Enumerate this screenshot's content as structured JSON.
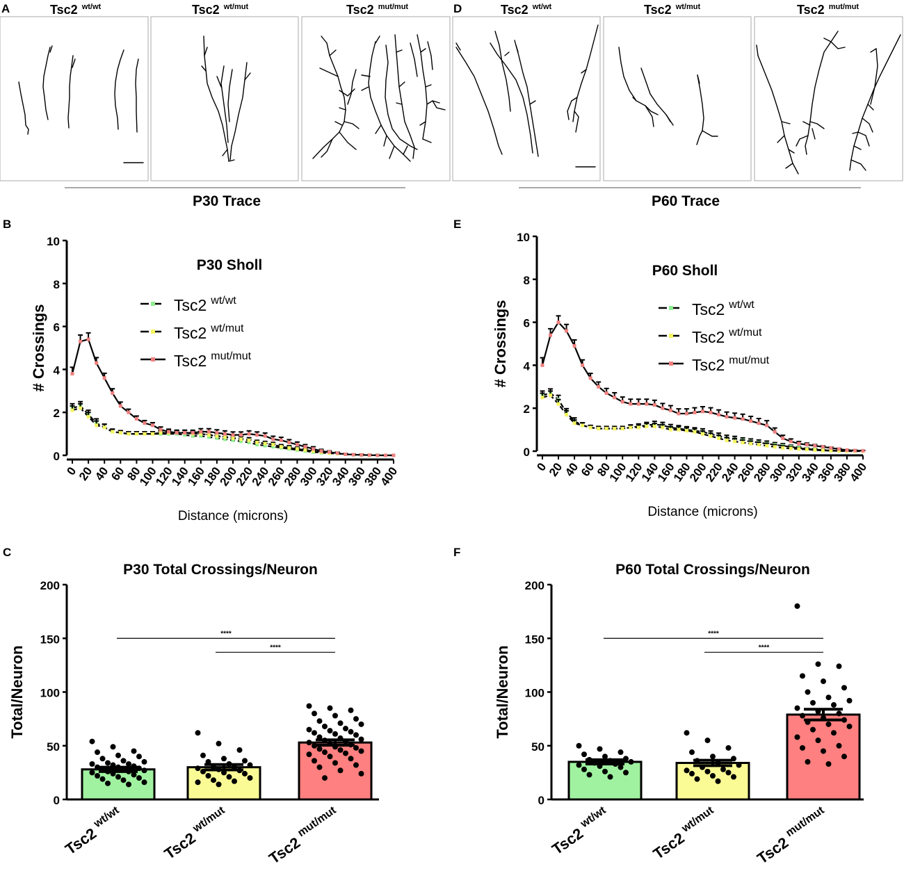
{
  "trace_row": {
    "left": {
      "panel_label": "A",
      "trace_label": "P30 Trace",
      "headers": [
        {
          "main": "Tsc2",
          "sup": "wt/wt"
        },
        {
          "main": "Tsc2",
          "sup": "wt/mut"
        },
        {
          "main": "Tsc2",
          "sup": "mut/mut"
        }
      ]
    },
    "right": {
      "panel_label": "D",
      "trace_label": "P60 Trace",
      "headers": [
        {
          "main": "Tsc2",
          "sup": "wt/wt"
        },
        {
          "main": "Tsc2",
          "sup": "wt/mut"
        },
        {
          "main": "Tsc2",
          "sup": "mut/mut"
        }
      ]
    }
  },
  "colors": {
    "wt_wt": "#90ee90",
    "wt_mut": "#f5f560",
    "mut_mut": "#f08080",
    "bar_wt_wt": "#a0f2a0",
    "bar_wt_mut": "#fbfb96",
    "bar_mut_mut": "#ff8080"
  },
  "chart_data": [
    {
      "panel": "B",
      "type": "line",
      "title": "P30 Sholl",
      "xlabel": "Distance (microns)",
      "ylabel": "# Crossings",
      "ylim": [
        0,
        10
      ],
      "yticks": [
        0,
        2,
        4,
        6,
        8,
        10
      ],
      "xlim": [
        0,
        400
      ],
      "xticks": [
        0,
        20,
        40,
        60,
        80,
        100,
        120,
        140,
        160,
        180,
        200,
        220,
        240,
        260,
        280,
        300,
        320,
        340,
        360,
        380,
        400
      ],
      "x": [
        0,
        10,
        20,
        30,
        40,
        50,
        60,
        70,
        80,
        90,
        100,
        110,
        120,
        130,
        140,
        150,
        160,
        170,
        180,
        190,
        200,
        210,
        220,
        230,
        240,
        250,
        260,
        270,
        280,
        290,
        300,
        310,
        320,
        330,
        340,
        350,
        360,
        370,
        380,
        390,
        400
      ],
      "legend": [
        {
          "main": "Tsc2",
          "sup": "wt/wt"
        },
        {
          "main": "Tsc2",
          "sup": "wt/mut"
        },
        {
          "main": "Tsc2",
          "sup": "mut/mut"
        }
      ],
      "series": [
        {
          "name": "Tsc2 wt/wt",
          "color_key": "wt_wt",
          "values": [
            2.2,
            2.3,
            1.9,
            1.5,
            1.3,
            1.1,
            1.05,
            1.0,
            1.0,
            1.0,
            1.0,
            1.0,
            1.0,
            1.0,
            0.95,
            0.9,
            0.9,
            0.85,
            0.8,
            0.75,
            0.7,
            0.65,
            0.6,
            0.5,
            0.45,
            0.4,
            0.35,
            0.3,
            0.25,
            0.2,
            0.15,
            0.12,
            0.1,
            0.08,
            0.05,
            0.03,
            0.02,
            0.01,
            0.01,
            0.0,
            0.0
          ],
          "err": [
            0.2,
            0.2,
            0.2,
            0.2,
            0.15,
            0.12,
            0.1,
            0.1,
            0.1,
            0.1,
            0.1,
            0.12,
            0.12,
            0.12,
            0.12,
            0.12,
            0.12,
            0.12,
            0.12,
            0.12,
            0.12,
            0.12,
            0.12,
            0.1,
            0.1,
            0.1,
            0.1,
            0.1,
            0.08,
            0.08,
            0.08,
            0.06,
            0.05,
            0.04,
            0.03,
            0.02,
            0.02,
            0.01,
            0.01,
            0.0,
            0.0
          ]
        },
        {
          "name": "Tsc2 wt/mut",
          "color_key": "wt_mut",
          "values": [
            2.1,
            2.2,
            1.8,
            1.4,
            1.3,
            1.1,
            1.05,
            1.0,
            1.0,
            1.0,
            1.0,
            1.05,
            1.05,
            1.05,
            1.05,
            1.0,
            1.0,
            0.95,
            0.9,
            0.85,
            0.8,
            0.75,
            0.7,
            0.6,
            0.55,
            0.5,
            0.4,
            0.35,
            0.3,
            0.25,
            0.2,
            0.15,
            0.1,
            0.08,
            0.05,
            0.03,
            0.02,
            0.01,
            0.0,
            0.0,
            0.0
          ],
          "err": [
            0.2,
            0.2,
            0.2,
            0.2,
            0.15,
            0.12,
            0.1,
            0.1,
            0.1,
            0.1,
            0.1,
            0.12,
            0.12,
            0.12,
            0.12,
            0.12,
            0.12,
            0.12,
            0.12,
            0.12,
            0.12,
            0.12,
            0.12,
            0.1,
            0.1,
            0.1,
            0.1,
            0.1,
            0.08,
            0.08,
            0.08,
            0.06,
            0.05,
            0.04,
            0.03,
            0.02,
            0.02,
            0.01,
            0.0,
            0.0,
            0.0
          ]
        },
        {
          "name": "Tsc2 mut/mut",
          "color_key": "mut_mut",
          "values": [
            3.8,
            5.3,
            5.4,
            4.3,
            3.6,
            2.9,
            2.3,
            2.0,
            1.7,
            1.5,
            1.4,
            1.2,
            1.1,
            1.05,
            1.05,
            1.05,
            1.1,
            1.1,
            1.05,
            1.0,
            0.95,
            0.95,
            1.0,
            0.95,
            0.9,
            0.75,
            0.7,
            0.6,
            0.5,
            0.4,
            0.3,
            0.2,
            0.15,
            0.1,
            0.05,
            0.03,
            0.02,
            0.01,
            0.0,
            0.0,
            0.0
          ],
          "err": [
            0.3,
            0.3,
            0.3,
            0.25,
            0.22,
            0.2,
            0.18,
            0.15,
            0.13,
            0.12,
            0.12,
            0.12,
            0.12,
            0.12,
            0.12,
            0.12,
            0.14,
            0.14,
            0.14,
            0.14,
            0.14,
            0.14,
            0.14,
            0.14,
            0.14,
            0.14,
            0.14,
            0.13,
            0.12,
            0.1,
            0.1,
            0.08,
            0.06,
            0.05,
            0.03,
            0.02,
            0.02,
            0.01,
            0.0,
            0.0,
            0.0
          ]
        }
      ]
    },
    {
      "panel": "E",
      "type": "line",
      "title": "P60 Sholl",
      "xlabel": "Distance (microns)",
      "ylabel": "# Crossings",
      "ylim": [
        0,
        10
      ],
      "yticks": [
        0,
        2,
        4,
        6,
        8,
        10
      ],
      "xlim": [
        0,
        400
      ],
      "xticks": [
        0,
        20,
        40,
        60,
        80,
        100,
        120,
        140,
        160,
        180,
        200,
        220,
        240,
        260,
        280,
        300,
        320,
        340,
        360,
        380,
        400
      ],
      "x": [
        0,
        10,
        20,
        30,
        40,
        50,
        60,
        70,
        80,
        90,
        100,
        110,
        120,
        130,
        140,
        150,
        160,
        170,
        180,
        190,
        200,
        210,
        220,
        230,
        240,
        250,
        260,
        270,
        280,
        290,
        300,
        310,
        320,
        330,
        340,
        350,
        360,
        370,
        380,
        390,
        400
      ],
      "legend": [
        {
          "main": "Tsc2",
          "sup": "wt/wt"
        },
        {
          "main": "Tsc2",
          "sup": "wt/mut"
        },
        {
          "main": "Tsc2",
          "sup": "mut/mut"
        }
      ],
      "series": [
        {
          "name": "Tsc2 wt/wt",
          "color_key": "wt_wt",
          "values": [
            2.6,
            2.7,
            2.4,
            1.8,
            1.4,
            1.2,
            1.1,
            1.05,
            1.05,
            1.05,
            1.05,
            1.1,
            1.15,
            1.2,
            1.25,
            1.2,
            1.1,
            1.05,
            1.0,
            0.95,
            0.9,
            0.8,
            0.7,
            0.6,
            0.55,
            0.5,
            0.45,
            0.4,
            0.35,
            0.3,
            0.25,
            0.2,
            0.15,
            0.1,
            0.08,
            0.05,
            0.03,
            0.02,
            0.01,
            0.0,
            0.0
          ],
          "err": [
            0.2,
            0.2,
            0.2,
            0.18,
            0.15,
            0.12,
            0.1,
            0.1,
            0.1,
            0.1,
            0.1,
            0.12,
            0.12,
            0.14,
            0.14,
            0.14,
            0.14,
            0.14,
            0.14,
            0.14,
            0.14,
            0.14,
            0.14,
            0.14,
            0.14,
            0.12,
            0.12,
            0.12,
            0.12,
            0.1,
            0.1,
            0.08,
            0.06,
            0.05,
            0.04,
            0.03,
            0.02,
            0.02,
            0.01,
            0.0,
            0.0
          ]
        },
        {
          "name": "Tsc2 wt/mut",
          "color_key": "wt_mut",
          "values": [
            2.5,
            2.6,
            2.2,
            1.7,
            1.3,
            1.2,
            1.1,
            1.05,
            1.05,
            1.05,
            1.05,
            1.1,
            1.1,
            1.15,
            1.15,
            1.1,
            1.0,
            1.0,
            0.95,
            0.9,
            0.8,
            0.7,
            0.6,
            0.5,
            0.45,
            0.4,
            0.35,
            0.3,
            0.25,
            0.2,
            0.15,
            0.12,
            0.1,
            0.08,
            0.05,
            0.03,
            0.02,
            0.01,
            0.0,
            0.0,
            0.0
          ],
          "err": [
            0.2,
            0.2,
            0.2,
            0.18,
            0.15,
            0.12,
            0.1,
            0.1,
            0.1,
            0.1,
            0.1,
            0.12,
            0.12,
            0.14,
            0.14,
            0.14,
            0.14,
            0.14,
            0.14,
            0.14,
            0.14,
            0.14,
            0.14,
            0.14,
            0.14,
            0.12,
            0.12,
            0.12,
            0.12,
            0.1,
            0.1,
            0.08,
            0.06,
            0.05,
            0.04,
            0.03,
            0.02,
            0.02,
            0.0,
            0.0,
            0.0
          ]
        },
        {
          "name": "Tsc2 mut/mut",
          "color_key": "mut_mut",
          "values": [
            4.0,
            5.4,
            6.0,
            5.6,
            4.9,
            4.0,
            3.4,
            3.0,
            2.7,
            2.5,
            2.3,
            2.2,
            2.2,
            2.2,
            2.15,
            2.0,
            1.9,
            1.75,
            1.75,
            1.8,
            1.85,
            1.8,
            1.7,
            1.6,
            1.55,
            1.5,
            1.4,
            1.3,
            1.2,
            0.9,
            0.6,
            0.45,
            0.35,
            0.3,
            0.25,
            0.2,
            0.15,
            0.1,
            0.05,
            0.03,
            0.02
          ],
          "err": [
            0.35,
            0.3,
            0.3,
            0.3,
            0.28,
            0.25,
            0.22,
            0.22,
            0.22,
            0.22,
            0.22,
            0.22,
            0.22,
            0.22,
            0.22,
            0.22,
            0.22,
            0.22,
            0.22,
            0.22,
            0.22,
            0.22,
            0.22,
            0.22,
            0.22,
            0.22,
            0.22,
            0.22,
            0.22,
            0.18,
            0.14,
            0.12,
            0.1,
            0.08,
            0.06,
            0.05,
            0.04,
            0.03,
            0.02,
            0.02,
            0.01
          ]
        }
      ]
    },
    {
      "panel": "C",
      "type": "bar",
      "title": "P30 Total Crossings/Neuron",
      "ylabel": "Total/Neuron",
      "ylim": [
        0,
        200
      ],
      "yticks": [
        0,
        50,
        100,
        150,
        200
      ],
      "categories": [
        {
          "main": "Tsc2",
          "sup": "wt/wt",
          "color_key": "bar_wt_wt"
        },
        {
          "main": "Tsc2",
          "sup": "wt/mut",
          "color_key": "bar_wt_mut"
        },
        {
          "main": "Tsc2",
          "sup": "mut/mut",
          "color_key": "bar_mut_mut"
        }
      ],
      "values": [
        28,
        30,
        53
      ],
      "sem": [
        2,
        2.5,
        2.5
      ],
      "points": [
        [
          54,
          49,
          45,
          44,
          41,
          40,
          38,
          36,
          35,
          34,
          33,
          33,
          32,
          31,
          30,
          30,
          29,
          28,
          28,
          27,
          26,
          26,
          25,
          24,
          23,
          22,
          21,
          20,
          19,
          18,
          16,
          15,
          14
        ],
        [
          62,
          52,
          46,
          41,
          38,
          36,
          35,
          33,
          32,
          30,
          30,
          29,
          28,
          27,
          26,
          25,
          24,
          22,
          21,
          20,
          18,
          17,
          16,
          14
        ],
        [
          87,
          85,
          83,
          80,
          78,
          75,
          73,
          71,
          70,
          68,
          66,
          65,
          64,
          63,
          62,
          61,
          60,
          58,
          57,
          56,
          55,
          54,
          53,
          52,
          51,
          50,
          49,
          48,
          47,
          46,
          45,
          44,
          43,
          42,
          40,
          38,
          36,
          34,
          32,
          30,
          27,
          24,
          20
        ]
      ],
      "comparisons": [
        {
          "from": 0,
          "to": 2,
          "y": 150,
          "label": "****"
        },
        {
          "from": 1,
          "to": 2,
          "y": 137,
          "label": "****"
        }
      ]
    },
    {
      "panel": "F",
      "type": "bar",
      "title": "P60 Total Crossings/Neuron",
      "ylabel": "Total/Neuron",
      "ylim": [
        0,
        200
      ],
      "yticks": [
        0,
        50,
        100,
        150,
        200
      ],
      "categories": [
        {
          "main": "Tsc2",
          "sup": "wt/wt",
          "color_key": "bar_wt_wt"
        },
        {
          "main": "Tsc2",
          "sup": "wt/mut",
          "color_key": "bar_wt_mut"
        },
        {
          "main": "Tsc2",
          "sup": "mut/mut",
          "color_key": "bar_mut_mut"
        }
      ],
      "values": [
        35,
        34,
        79
      ],
      "sem": [
        2,
        2.5,
        5
      ],
      "points": [
        [
          50,
          47,
          44,
          42,
          40,
          38,
          37,
          36,
          35,
          34,
          33,
          32,
          31,
          30,
          28,
          26,
          25,
          23,
          21
        ],
        [
          62,
          55,
          48,
          44,
          40,
          38,
          36,
          34,
          32,
          30,
          28,
          27,
          26,
          25,
          24,
          22,
          21,
          19,
          17
        ],
        [
          180,
          126,
          124,
          115,
          110,
          104,
          100,
          95,
          92,
          90,
          88,
          85,
          82,
          80,
          78,
          76,
          74,
          72,
          70,
          68,
          65,
          62,
          58,
          55,
          50,
          48,
          45,
          40,
          35,
          33
        ]
      ],
      "comparisons": [
        {
          "from": 0,
          "to": 2,
          "y": 150,
          "label": "****"
        },
        {
          "from": 1,
          "to": 2,
          "y": 137,
          "label": "****"
        }
      ]
    }
  ]
}
